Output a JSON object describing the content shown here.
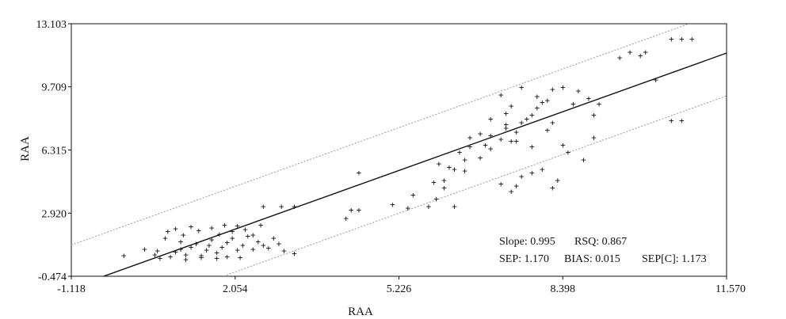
{
  "chart_data": {
    "type": "scatter",
    "xlabel": "RAA",
    "ylabel": "RAA",
    "xlim": [
      -1.118,
      11.57
    ],
    "ylim": [
      -0.474,
      13.103
    ],
    "xticks": [
      "-1.118",
      "2.054",
      "5.226",
      "8.398",
      "11.570"
    ],
    "yticks": [
      "-0.474",
      "2.920",
      "6.315",
      "9.709",
      "13.103"
    ],
    "grid": false,
    "stats": {
      "slope": "Slope: 0.995",
      "rsq": "RSQ: 0.867",
      "sep": "SEP: 1.170",
      "bias": "BIAS: 0.015",
      "sepc": "SEP[C]: 1.173"
    },
    "regression_line": {
      "slope": 0.995,
      "intercept": 0.015
    },
    "confidence_offset": 2.3,
    "points": [
      [
        -0.1,
        0.65
      ],
      [
        0.3,
        1.0
      ],
      [
        0.5,
        0.7
      ],
      [
        0.55,
        0.9
      ],
      [
        0.8,
        0.6
      ],
      [
        0.9,
        0.85
      ],
      [
        1.0,
        1.0
      ],
      [
        1.1,
        0.7
      ],
      [
        1.2,
        1.1
      ],
      [
        1.3,
        1.3
      ],
      [
        1.4,
        0.65
      ],
      [
        1.5,
        0.95
      ],
      [
        1.55,
        1.2
      ],
      [
        1.6,
        1.5
      ],
      [
        1.7,
        0.8
      ],
      [
        1.8,
        1.1
      ],
      [
        1.9,
        1.35
      ],
      [
        2.0,
        1.6
      ],
      [
        2.1,
        0.95
      ],
      [
        2.2,
        1.2
      ],
      [
        2.3,
        1.7
      ],
      [
        2.4,
        1.0
      ],
      [
        2.5,
        1.4
      ],
      [
        2.6,
        1.2
      ],
      [
        2.7,
        1.05
      ],
      [
        2.8,
        1.6
      ],
      [
        2.9,
        1.3
      ],
      [
        3.0,
        0.9
      ],
      [
        3.2,
        0.75
      ],
      [
        0.7,
        1.6
      ],
      [
        0.75,
        1.95
      ],
      [
        0.9,
        2.1
      ],
      [
        1.05,
        1.75
      ],
      [
        1.2,
        2.2
      ],
      [
        1.35,
        2.0
      ],
      [
        1.6,
        2.15
      ],
      [
        1.75,
        1.8
      ],
      [
        1.85,
        2.3
      ],
      [
        2.0,
        1.95
      ],
      [
        2.1,
        2.25
      ],
      [
        2.25,
        2.05
      ],
      [
        2.4,
        1.75
      ],
      [
        2.55,
        2.3
      ],
      [
        1.1,
        0.45
      ],
      [
        1.4,
        0.55
      ],
      [
        1.7,
        0.5
      ],
      [
        1.9,
        0.6
      ],
      [
        2.15,
        0.55
      ],
      [
        0.6,
        0.5
      ],
      [
        1.0,
        1.4
      ],
      [
        2.6,
        3.3
      ],
      [
        2.95,
        3.3
      ],
      [
        3.2,
        3.3
      ],
      [
        4.3,
        3.1
      ],
      [
        4.45,
        3.1
      ],
      [
        4.2,
        2.65
      ],
      [
        4.45,
        5.1
      ],
      [
        5.1,
        3.4
      ],
      [
        5.4,
        3.2
      ],
      [
        5.5,
        3.9
      ],
      [
        5.8,
        3.3
      ],
      [
        5.95,
        3.7
      ],
      [
        6.1,
        4.3
      ],
      [
        6.3,
        3.3
      ],
      [
        5.9,
        4.6
      ],
      [
        6.1,
        4.7
      ],
      [
        6.3,
        5.3
      ],
      [
        6.5,
        5.2
      ],
      [
        6.0,
        5.6
      ],
      [
        6.2,
        5.4
      ],
      [
        6.4,
        6.2
      ],
      [
        6.5,
        5.8
      ],
      [
        6.6,
        6.5
      ],
      [
        6.8,
        5.9
      ],
      [
        6.9,
        6.6
      ],
      [
        7.0,
        6.4
      ],
      [
        6.6,
        7.0
      ],
      [
        6.8,
        7.2
      ],
      [
        7.0,
        7.1
      ],
      [
        7.2,
        6.9
      ],
      [
        7.3,
        7.5
      ],
      [
        7.4,
        6.8
      ],
      [
        7.5,
        7.3
      ],
      [
        7.6,
        7.8
      ],
      [
        7.8,
        8.2
      ],
      [
        7.9,
        8.6
      ],
      [
        8.0,
        8.9
      ],
      [
        8.1,
        9.0
      ],
      [
        7.0,
        8.0
      ],
      [
        7.3,
        7.7
      ],
      [
        7.7,
        8.0
      ],
      [
        8.2,
        7.8
      ],
      [
        7.2,
        4.5
      ],
      [
        7.4,
        4.1
      ],
      [
        7.5,
        4.4
      ],
      [
        7.6,
        4.9
      ],
      [
        7.8,
        5.1
      ],
      [
        8.0,
        5.3
      ],
      [
        8.2,
        4.3
      ],
      [
        8.3,
        4.7
      ],
      [
        7.5,
        6.8
      ],
      [
        7.8,
        6.5
      ],
      [
        8.1,
        7.4
      ],
      [
        8.4,
        6.6
      ],
      [
        8.5,
        6.2
      ],
      [
        8.6,
        8.8
      ],
      [
        7.2,
        9.3
      ],
      [
        7.4,
        8.7
      ],
      [
        7.6,
        9.7
      ],
      [
        7.9,
        9.2
      ],
      [
        8.2,
        9.6
      ],
      [
        8.4,
        9.7
      ],
      [
        8.7,
        9.5
      ],
      [
        8.9,
        9.1
      ],
      [
        9.1,
        8.8
      ],
      [
        9.0,
        8.2
      ],
      [
        8.8,
        5.8
      ],
      [
        9.0,
        7.0
      ],
      [
        7.3,
        8.3
      ],
      [
        9.5,
        11.3
      ],
      [
        9.7,
        11.6
      ],
      [
        9.9,
        11.4
      ],
      [
        10.0,
        11.6
      ],
      [
        10.2,
        10.1
      ],
      [
        10.5,
        12.3
      ],
      [
        10.7,
        12.3
      ],
      [
        10.9,
        12.3
      ],
      [
        10.5,
        7.9
      ],
      [
        10.7,
        7.9
      ]
    ]
  }
}
